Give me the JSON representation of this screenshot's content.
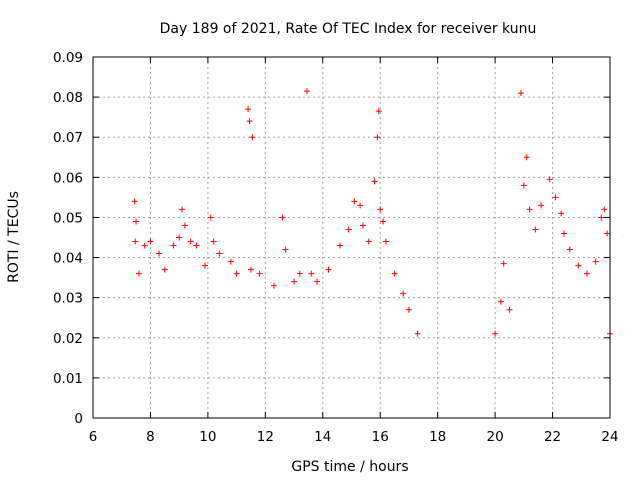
{
  "chart_data": {
    "type": "scatter",
    "title": "Day 189 of 2021, Rate Of TEC Index for receiver kunu",
    "xlabel": "GPS time / hours",
    "ylabel": "ROTI / TECUs",
    "xlim": [
      6,
      24
    ],
    "ylim": [
      0,
      0.09
    ],
    "x_ticks": [
      "6",
      "8",
      "10",
      "12",
      "14",
      "16",
      "18",
      "20",
      "22",
      "24"
    ],
    "y_ticks": [
      "0",
      "0.01",
      "0.02",
      "0.03",
      "0.04",
      "0.05",
      "0.06",
      "0.07",
      "0.08",
      "0.09"
    ],
    "grid": true,
    "legend": "none",
    "marker": "+",
    "color": "#ff0000",
    "series": [
      {
        "points": [
          [
            7.45,
            0.054
          ],
          [
            7.47,
            0.044
          ],
          [
            7.5,
            0.049
          ],
          [
            7.6,
            0.036
          ],
          [
            7.8,
            0.043
          ],
          [
            8.0,
            0.044
          ],
          [
            8.3,
            0.041
          ],
          [
            8.5,
            0.037
          ],
          [
            8.8,
            0.043
          ],
          [
            9.0,
            0.045
          ],
          [
            9.1,
            0.052
          ],
          [
            9.2,
            0.048
          ],
          [
            9.4,
            0.044
          ],
          [
            9.6,
            0.043
          ],
          [
            9.9,
            0.038
          ],
          [
            10.1,
            0.05
          ],
          [
            10.2,
            0.044
          ],
          [
            10.4,
            0.041
          ],
          [
            10.8,
            0.039
          ],
          [
            11.0,
            0.036
          ],
          [
            11.4,
            0.077
          ],
          [
            11.45,
            0.074
          ],
          [
            11.55,
            0.07
          ],
          [
            11.5,
            0.037
          ],
          [
            11.8,
            0.036
          ],
          [
            12.3,
            0.033
          ],
          [
            12.6,
            0.05
          ],
          [
            12.7,
            0.042
          ],
          [
            13.0,
            0.034
          ],
          [
            13.2,
            0.036
          ],
          [
            13.45,
            0.0815
          ],
          [
            13.6,
            0.036
          ],
          [
            13.8,
            0.034
          ],
          [
            14.2,
            0.037
          ],
          [
            14.6,
            0.043
          ],
          [
            14.9,
            0.047
          ],
          [
            15.1,
            0.054
          ],
          [
            15.3,
            0.053
          ],
          [
            15.4,
            0.048
          ],
          [
            15.6,
            0.044
          ],
          [
            15.8,
            0.059
          ],
          [
            15.9,
            0.07
          ],
          [
            15.95,
            0.0765
          ],
          [
            16.0,
            0.052
          ],
          [
            16.1,
            0.049
          ],
          [
            16.2,
            0.044
          ],
          [
            16.5,
            0.036
          ],
          [
            16.8,
            0.031
          ],
          [
            17.0,
            0.027
          ],
          [
            17.3,
            0.021
          ],
          [
            20.0,
            0.021
          ],
          [
            20.2,
            0.029
          ],
          [
            20.3,
            0.0385
          ],
          [
            20.5,
            0.027
          ],
          [
            20.9,
            0.081
          ],
          [
            21.1,
            0.065
          ],
          [
            21.0,
            0.058
          ],
          [
            21.2,
            0.052
          ],
          [
            21.4,
            0.047
          ],
          [
            21.6,
            0.053
          ],
          [
            21.9,
            0.0595
          ],
          [
            22.1,
            0.055
          ],
          [
            22.3,
            0.051
          ],
          [
            22.4,
            0.046
          ],
          [
            22.6,
            0.042
          ],
          [
            22.9,
            0.038
          ],
          [
            23.2,
            0.036
          ],
          [
            23.5,
            0.039
          ],
          [
            23.7,
            0.05
          ],
          [
            23.8,
            0.052
          ],
          [
            23.9,
            0.046
          ],
          [
            24.0,
            0.021
          ]
        ]
      }
    ]
  }
}
